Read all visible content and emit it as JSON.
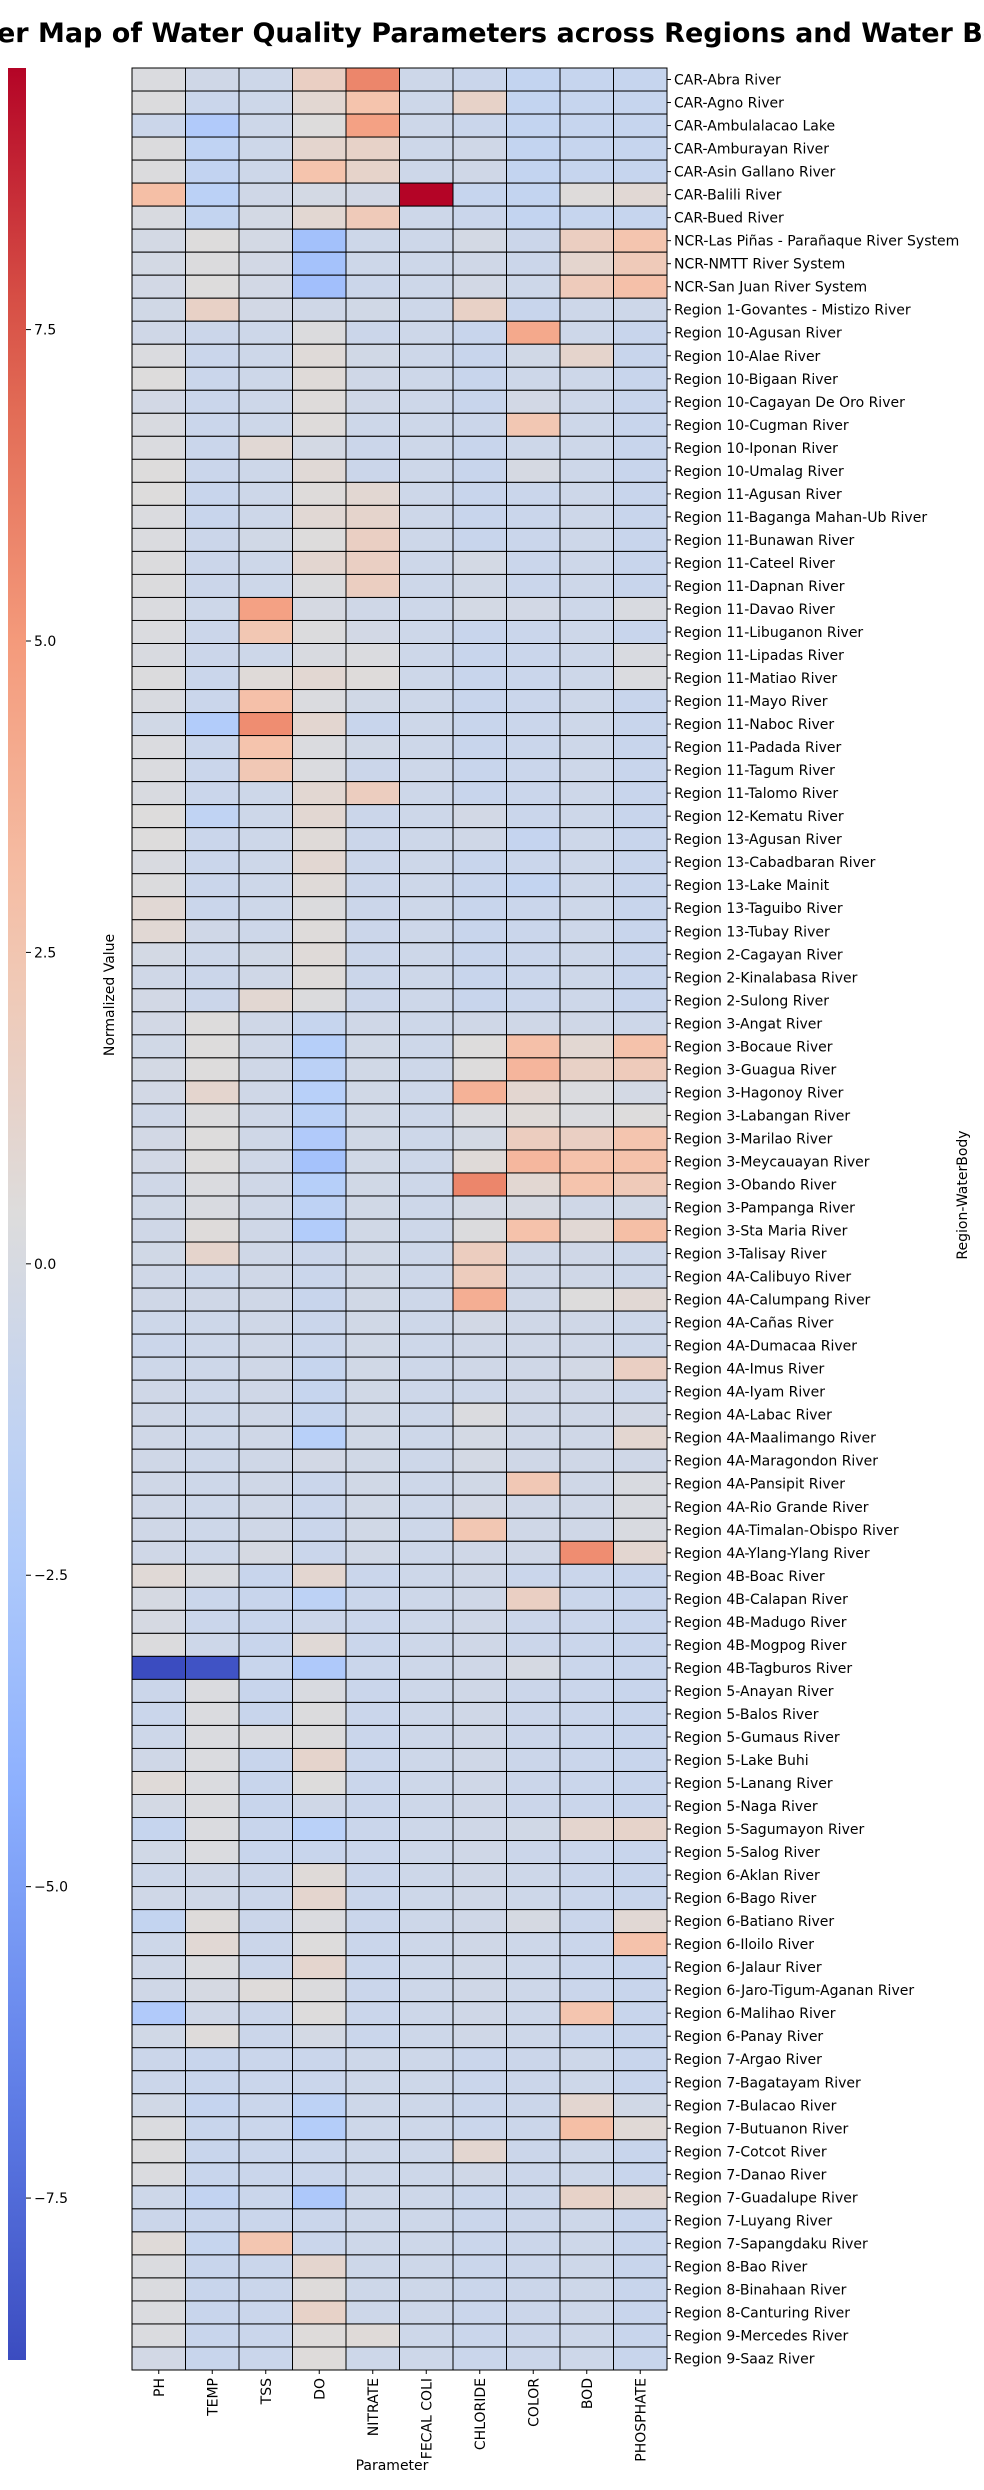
{
  "chart_data": {
    "type": "heatmap",
    "title": "Cluster Map of Water Quality Parameters across Regions and Water Bodies",
    "xlabel": "Parameter",
    "ylabel": "Region-WaterBody",
    "colorbar_label": "Normalized Value",
    "colormap": "coolwarm",
    "vmin": -8.8,
    "vmax": 9.6,
    "colorbar_ticks": [
      7.5,
      5.0,
      2.5,
      0.0,
      -2.5,
      -5.0,
      -7.5
    ],
    "colorbar_tick_labels": [
      "7.5",
      "5.0",
      "2.5",
      "0.0",
      "−2.5",
      "−5.0",
      "−7.5"
    ],
    "grid": true,
    "columns": [
      "PH",
      "TEMP",
      "TSS",
      "DO",
      "NITRATE",
      "FECAL COLI",
      "CHLORIDE",
      "COLOR",
      "BOD",
      "PHOSPHATE"
    ],
    "rows": [
      "CAR-Abra River",
      "CAR-Agno River",
      "CAR-Ambulalacao Lake",
      "CAR-Amburayan River",
      "CAR-Asin Gallano River",
      "CAR-Balili River",
      "CAR-Bued River",
      "NCR-Las Piñas - Parañaque River System",
      "NCR-NMTT River System",
      "NCR-San Juan River System",
      "Region 1-Govantes - Mistizo River",
      "Region 10-Agusan River",
      "Region 10-Alae River",
      "Region 10-Bigaan River",
      "Region 10-Cagayan De Oro River",
      "Region 10-Cugman River",
      "Region 10-Iponan River",
      "Region 10-Umalag River",
      "Region 11-Agusan River",
      "Region 11-Baganga Mahan-Ub River",
      "Region 11-Bunawan River",
      "Region 11-Cateel River",
      "Region 11-Dapnan River",
      "Region 11-Davao River",
      "Region 11-Libuganon River",
      "Region 11-Lipadas River",
      "Region 11-Matiao River",
      "Region 11-Mayo River",
      "Region 11-Naboc River",
      "Region 11-Padada River",
      "Region 11-Tagum River",
      "Region 11-Talomo River",
      "Region 12-Kematu River",
      "Region 13-Agusan River",
      "Region 13-Cabadbaran River",
      "Region 13-Lake Mainit",
      "Region 13-Taguibo River",
      "Region 13-Tubay River",
      "Region 2-Cagayan River",
      "Region 2-Kinalabasa River",
      "Region 2-Sulong River",
      "Region 3-Angat River",
      "Region 3-Bocaue River",
      "Region 3-Guagua River",
      "Region 3-Hagonoy River",
      "Region 3-Labangan River",
      "Region 3-Marilao River",
      "Region 3-Meycauayan River",
      "Region 3-Obando River",
      "Region 3-Pampanga River",
      "Region 3-Sta Maria River",
      "Region 3-Talisay River",
      "Region 4A-Calibuyo River",
      "Region 4A-Calumpang River",
      "Region 4A-Cañas River",
      "Region 4A-Dumacaa River",
      "Region 4A-Imus River",
      "Region 4A-Iyam River",
      "Region 4A-Labac River",
      "Region 4A-Maalimango River",
      "Region 4A-Maragondon River",
      "Region 4A-Pansipit River",
      "Region 4A-Rio Grande River",
      "Region 4A-Timalan-Obispo River",
      "Region 4A-Ylang-Ylang River",
      "Region 4B-Boac River",
      "Region 4B-Calapan River",
      "Region 4B-Madugo River",
      "Region 4B-Mogpog River",
      "Region 4B-Tagburos River",
      "Region 5-Anayan River",
      "Region 5-Balos River",
      "Region 5-Gumaus River",
      "Region 5-Lake Buhi",
      "Region 5-Lanang River",
      "Region 5-Naga River",
      "Region 5-Sagumayon River",
      "Region 5-Salog River",
      "Region 6-Aklan River",
      "Region 6-Bago River",
      "Region 6-Batiano River",
      "Region 6-Iloilo River",
      "Region 6-Jalaur River",
      "Region 6-Jaro-Tigum-Aganan River",
      "Region 6-Malihao River",
      "Region 6-Panay River",
      "Region 7-Argao River",
      "Region 7-Bagatayam River",
      "Region 7-Bulacao River",
      "Region 7-Butuanon River",
      "Region 7-Cotcot River",
      "Region 7-Danao River",
      "Region 7-Guadalupe River",
      "Region 7-Luyang River",
      "Region 7-Sapangdaku River",
      "Region 8-Bao River",
      "Region 8-Binahaan River",
      "Region 8-Canturing River",
      "Region 9-Mercedes River",
      "Region 9-Saaz River"
    ],
    "values": [
      [
        0.2,
        -0.5,
        -0.6,
        1.6,
        5.8,
        -0.6,
        -0.8,
        -1.2,
        -1.0,
        -1.0
      ],
      [
        0.3,
        -0.8,
        -0.6,
        0.9,
        2.7,
        -0.6,
        1.4,
        -1.2,
        -1.0,
        -1.0
      ],
      [
        -0.7,
        -2.3,
        -0.6,
        0.4,
        4.6,
        -0.6,
        -0.8,
        -1.2,
        -1.0,
        -1.0
      ],
      [
        0.3,
        -1.4,
        -0.6,
        1.1,
        1.4,
        -0.6,
        -0.5,
        -1.2,
        -1.0,
        -1.0
      ],
      [
        0.3,
        -1.3,
        -0.6,
        2.7,
        1.3,
        -0.6,
        -0.5,
        -1.2,
        -1.0,
        -1.0
      ],
      [
        3.0,
        -1.7,
        -0.5,
        -0.2,
        -0.3,
        9.6,
        -1.0,
        -1.2,
        0.5,
        0.8
      ],
      [
        0.1,
        -1.2,
        -0.2,
        0.9,
        2.1,
        -0.6,
        -0.8,
        -1.2,
        -1.0,
        -1.0
      ],
      [
        -0.2,
        0.4,
        -0.2,
        -3.0,
        -0.6,
        -0.6,
        -0.2,
        -0.7,
        1.7,
        2.6
      ],
      [
        -0.2,
        0.3,
        -0.3,
        -2.9,
        -0.6,
        -0.6,
        -0.5,
        -0.7,
        1.1,
        2.1
      ],
      [
        -0.3,
        0.4,
        -0.3,
        -3.1,
        -0.7,
        -0.6,
        -0.3,
        -0.6,
        2.0,
        2.9
      ],
      [
        -0.4,
        1.5,
        -0.3,
        -0.5,
        -0.4,
        -0.6,
        1.5,
        -0.9,
        -0.6,
        -0.6
      ],
      [
        -0.5,
        -0.7,
        -0.6,
        0.3,
        -0.7,
        -0.6,
        -0.9,
        4.2,
        -0.6,
        -0.9
      ],
      [
        0.2,
        -0.8,
        -0.6,
        0.6,
        -0.4,
        -0.6,
        -0.9,
        -0.4,
        1.2,
        -0.9
      ],
      [
        0.4,
        -0.8,
        -0.6,
        0.6,
        -0.5,
        -0.6,
        -0.9,
        -0.6,
        -0.6,
        -0.9
      ],
      [
        -0.3,
        -0.8,
        -0.6,
        0.5,
        -0.5,
        -0.6,
        -0.9,
        -0.3,
        -0.6,
        -0.9
      ],
      [
        0.1,
        -0.8,
        -0.6,
        0.5,
        -0.6,
        -0.6,
        -0.7,
        2.4,
        -0.6,
        -0.9
      ],
      [
        0.2,
        -0.8,
        0.8,
        -0.2,
        -0.7,
        -0.6,
        -0.9,
        -0.6,
        -0.6,
        -0.9
      ],
      [
        0.4,
        -0.8,
        -0.6,
        0.7,
        -0.7,
        -0.6,
        -0.9,
        -0.1,
        -0.6,
        -0.9
      ],
      [
        0.4,
        -0.9,
        -0.6,
        0.5,
        0.9,
        -0.6,
        -0.9,
        -0.8,
        -0.6,
        -0.9
      ],
      [
        0.2,
        -0.9,
        -0.6,
        0.8,
        1.2,
        -0.6,
        -0.9,
        -0.8,
        -0.6,
        -0.9
      ],
      [
        0.2,
        -0.7,
        -0.4,
        0.4,
        1.6,
        -0.6,
        -0.9,
        -0.8,
        -0.6,
        -0.9
      ],
      [
        0.3,
        -0.7,
        -0.6,
        1.0,
        1.6,
        -0.6,
        -0.2,
        -0.8,
        -0.6,
        -0.9
      ],
      [
        0.3,
        -0.7,
        -0.6,
        0.3,
        1.7,
        -0.6,
        -0.4,
        -0.8,
        -0.6,
        -0.9
      ],
      [
        0.2,
        -0.6,
        4.6,
        -0.1,
        -0.5,
        -0.6,
        -0.2,
        -0.3,
        -0.6,
        0.1
      ],
      [
        0.2,
        -0.7,
        2.4,
        0.3,
        -0.3,
        -0.6,
        -0.9,
        -0.8,
        -0.6,
        -0.9
      ],
      [
        0.1,
        -0.7,
        -0.6,
        0.1,
        0.2,
        -0.6,
        -0.9,
        -0.8,
        -0.6,
        0.1
      ],
      [
        0.3,
        -0.8,
        0.6,
        0.9,
        0.5,
        -0.6,
        -0.9,
        -0.8,
        -0.6,
        0.2
      ],
      [
        0.1,
        -0.8,
        2.9,
        0.2,
        -0.4,
        -0.6,
        -0.9,
        -0.8,
        -0.6,
        -0.9
      ],
      [
        -0.4,
        -2.2,
        5.5,
        1.0,
        -0.9,
        -0.6,
        -0.9,
        -0.8,
        -0.6,
        -0.9
      ],
      [
        0.2,
        -0.8,
        2.7,
        0.2,
        -0.4,
        -0.6,
        -0.9,
        -0.8,
        -0.6,
        -0.9
      ],
      [
        0.2,
        -0.8,
        2.3,
        0.2,
        -0.7,
        -0.6,
        -0.9,
        -0.8,
        -0.6,
        -0.9
      ],
      [
        0.1,
        -0.8,
        -0.6,
        0.9,
        1.8,
        -0.6,
        -0.9,
        -0.8,
        -0.6,
        -0.9
      ],
      [
        0.4,
        -1.4,
        -0.6,
        0.9,
        -0.7,
        -0.6,
        -0.3,
        -0.8,
        -0.6,
        -0.9
      ],
      [
        0.4,
        -0.8,
        -0.6,
        0.6,
        -0.7,
        -0.6,
        -0.5,
        -1.1,
        -0.6,
        -0.9
      ],
      [
        0.1,
        -0.8,
        -0.6,
        0.9,
        -0.7,
        -0.6,
        -0.9,
        -0.8,
        -0.6,
        -0.9
      ],
      [
        0.3,
        -0.8,
        -0.6,
        0.6,
        -0.7,
        -0.6,
        -0.9,
        -1.2,
        -0.6,
        -0.9
      ],
      [
        0.8,
        -0.8,
        -0.6,
        0.3,
        -0.7,
        -0.6,
        -0.9,
        -0.8,
        -0.6,
        -0.9
      ],
      [
        0.8,
        -0.5,
        -0.6,
        0.5,
        -0.7,
        -0.6,
        -0.9,
        -0.8,
        -0.6,
        -0.9
      ],
      [
        -0.2,
        -0.6,
        -0.4,
        0.6,
        -0.7,
        -0.6,
        -0.9,
        -0.8,
        -0.6,
        -0.9
      ],
      [
        -0.5,
        -0.7,
        -0.5,
        0.5,
        -0.7,
        -0.6,
        -0.9,
        -0.8,
        -0.6,
        -0.9
      ],
      [
        -0.3,
        -0.7,
        0.9,
        0.3,
        -0.7,
        -0.6,
        -0.9,
        -0.8,
        -0.6,
        -0.9
      ],
      [
        -0.3,
        0.4,
        -0.5,
        -1.0,
        -0.5,
        -0.6,
        -0.5,
        -0.5,
        -0.5,
        -0.6
      ],
      [
        -0.4,
        0.4,
        -0.5,
        -2.0,
        -0.4,
        -0.6,
        0.4,
        2.9,
        0.9,
        2.8
      ],
      [
        -0.2,
        0.4,
        -0.5,
        -1.7,
        -0.4,
        -0.6,
        0.4,
        3.5,
        1.5,
        2.0
      ],
      [
        -0.3,
        1.1,
        -0.5,
        -1.9,
        -0.4,
        -0.6,
        3.7,
        1.0,
        0.2,
        -0.2
      ],
      [
        -0.5,
        0.3,
        -0.5,
        -1.7,
        -0.4,
        -0.6,
        0.2,
        0.6,
        0.2,
        0.4
      ],
      [
        -0.3,
        0.4,
        -0.5,
        -2.3,
        -0.4,
        -0.6,
        -0.2,
        1.8,
        1.6,
        2.6
      ],
      [
        -0.3,
        0.4,
        -0.5,
        -2.9,
        -0.4,
        -0.6,
        0.6,
        3.4,
        2.8,
        2.8
      ],
      [
        -0.5,
        0.2,
        -0.5,
        -2.0,
        -0.4,
        -0.6,
        5.8,
        0.9,
        2.7,
        2.1
      ],
      [
        -0.4,
        0.1,
        -0.5,
        -1.5,
        -0.4,
        -0.6,
        -0.2,
        -0.1,
        -0.5,
        -0.4
      ],
      [
        -0.5,
        0.5,
        -0.5,
        -2.2,
        -0.4,
        -0.6,
        0.3,
        2.8,
        0.8,
        3.0
      ],
      [
        -0.4,
        1.2,
        -0.5,
        -0.7,
        -0.4,
        -0.6,
        1.8,
        -0.5,
        -0.5,
        -0.6
      ],
      [
        -0.5,
        -0.6,
        -0.5,
        -0.8,
        -0.4,
        -0.6,
        1.9,
        -0.5,
        -0.5,
        -0.6
      ],
      [
        -0.5,
        -0.5,
        -0.5,
        -0.9,
        -0.4,
        -0.6,
        3.9,
        -0.5,
        0.4,
        0.8
      ],
      [
        -0.6,
        -0.6,
        -0.5,
        -0.8,
        -0.4,
        -0.6,
        -0.3,
        -0.5,
        -0.5,
        -0.6
      ],
      [
        -0.7,
        -0.6,
        -0.5,
        -0.8,
        -0.4,
        -0.6,
        -0.5,
        -0.5,
        -0.5,
        -0.6
      ],
      [
        -0.6,
        -0.6,
        -0.5,
        -1.0,
        -0.4,
        -0.6,
        -0.5,
        -0.5,
        -0.3,
        1.6
      ],
      [
        -0.5,
        -0.6,
        -0.5,
        -1.0,
        -0.4,
        -0.6,
        -0.6,
        -0.5,
        -0.5,
        -0.6
      ],
      [
        -0.5,
        -0.6,
        -0.5,
        -1.0,
        -0.4,
        -0.6,
        0.2,
        -0.5,
        -0.5,
        -0.3
      ],
      [
        -0.5,
        -0.6,
        -0.5,
        -1.9,
        -0.4,
        -0.6,
        -0.2,
        -0.5,
        -0.5,
        1.0
      ],
      [
        -0.5,
        -0.6,
        -0.5,
        -0.3,
        -0.4,
        -0.6,
        -0.2,
        -0.5,
        -0.5,
        -0.5
      ],
      [
        -0.5,
        -0.6,
        -0.5,
        -0.8,
        -0.4,
        -0.6,
        -0.4,
        2.3,
        -0.5,
        0.1
      ],
      [
        -0.5,
        -0.6,
        -0.5,
        -0.8,
        -0.4,
        -0.6,
        -0.3,
        -0.5,
        -0.5,
        0.1
      ],
      [
        -0.5,
        -0.6,
        -0.5,
        -0.8,
        -0.4,
        -0.6,
        2.4,
        -0.5,
        -0.5,
        0.1
      ],
      [
        -0.5,
        -0.6,
        -0.1,
        -0.8,
        -0.4,
        -0.6,
        -0.5,
        -0.5,
        5.5,
        1.0
      ],
      [
        0.7,
        0.1,
        -0.9,
        1.0,
        -0.8,
        -0.6,
        -0.5,
        -0.8,
        -0.8,
        -0.9
      ],
      [
        -0.1,
        -0.8,
        -0.9,
        -1.6,
        -0.8,
        -0.6,
        -0.5,
        1.6,
        -0.8,
        -0.9
      ],
      [
        -0.1,
        -0.8,
        -0.9,
        -0.7,
        -0.8,
        -0.6,
        -0.5,
        -0.7,
        -0.8,
        -0.9
      ],
      [
        0.3,
        -0.6,
        -0.9,
        0.7,
        -0.8,
        -0.6,
        -0.5,
        -0.7,
        -0.8,
        -0.9
      ],
      [
        -8.8,
        -8.5,
        -0.9,
        -2.4,
        -0.8,
        -0.6,
        -0.5,
        -0.1,
        -0.8,
        -0.9
      ],
      [
        -0.7,
        0.2,
        -0.9,
        0.1,
        -0.8,
        -0.6,
        -0.5,
        -0.7,
        -0.8,
        -0.9
      ],
      [
        -0.8,
        0.2,
        -0.9,
        0.3,
        -0.8,
        -0.6,
        -0.5,
        -0.7,
        -0.8,
        -0.9
      ],
      [
        -0.6,
        0.2,
        0.2,
        0.3,
        -0.8,
        -0.6,
        -0.5,
        -0.7,
        -0.8,
        -0.9
      ],
      [
        -0.5,
        0.2,
        -0.9,
        1.2,
        -0.8,
        -0.6,
        -0.5,
        -0.7,
        -0.8,
        -0.9
      ],
      [
        0.6,
        0.2,
        -0.9,
        0.4,
        -0.8,
        -0.6,
        -0.5,
        -0.7,
        -0.8,
        -0.9
      ],
      [
        -0.2,
        0.2,
        -0.9,
        -0.5,
        -0.8,
        -0.6,
        -0.5,
        -0.7,
        -0.8,
        -0.9
      ],
      [
        -1.0,
        0.2,
        -0.9,
        -1.8,
        -0.8,
        -0.6,
        -0.5,
        -0.4,
        1.1,
        1.3
      ],
      [
        -0.4,
        0.2,
        -0.9,
        -0.9,
        -0.8,
        -0.6,
        -0.5,
        -0.7,
        -0.8,
        -0.9
      ],
      [
        -0.6,
        -0.5,
        -0.7,
        0.6,
        -0.8,
        -0.6,
        -0.5,
        -0.6,
        -0.8,
        -0.9
      ],
      [
        -0.5,
        -0.5,
        -0.7,
        1.1,
        -0.8,
        -0.6,
        -0.5,
        -0.6,
        -0.8,
        -0.9
      ],
      [
        -1.2,
        0.5,
        -0.7,
        0.2,
        -0.8,
        -0.6,
        -0.5,
        -0.1,
        -0.8,
        0.8
      ],
      [
        -0.6,
        0.8,
        -0.7,
        0.4,
        -0.8,
        -0.6,
        -0.5,
        -0.6,
        -0.8,
        2.8
      ],
      [
        -0.5,
        0.2,
        -0.7,
        1.1,
        -0.8,
        -0.6,
        -0.5,
        -0.6,
        -0.8,
        -0.9
      ],
      [
        -0.5,
        -0.1,
        0.5,
        0.3,
        -0.8,
        -0.6,
        -0.5,
        -0.6,
        -0.8,
        -0.9
      ],
      [
        -2.3,
        -0.5,
        -0.7,
        0.4,
        -0.8,
        -0.6,
        -0.5,
        -0.6,
        2.6,
        -0.9
      ],
      [
        -0.4,
        0.5,
        -0.7,
        -0.2,
        -0.8,
        -0.6,
        -0.5,
        -0.6,
        -0.8,
        -0.9
      ],
      [
        -0.7,
        -0.9,
        -0.8,
        -0.8,
        -0.6,
        -0.6,
        -0.8,
        -0.7,
        -0.6,
        -0.9
      ],
      [
        -0.7,
        -0.9,
        -0.8,
        -0.8,
        -0.6,
        -0.6,
        -0.8,
        -0.7,
        -0.6,
        -0.9
      ],
      [
        -0.4,
        -1.1,
        -0.8,
        -1.6,
        -0.6,
        -0.6,
        -0.8,
        -0.7,
        1.0,
        -0.4
      ],
      [
        0.2,
        -0.9,
        -0.8,
        -2.1,
        -0.6,
        -0.6,
        -0.8,
        -0.7,
        3.0,
        0.7
      ],
      [
        0.3,
        -0.9,
        -0.8,
        -0.8,
        -0.6,
        -0.6,
        1.0,
        -0.7,
        -0.6,
        -0.9
      ],
      [
        0.2,
        -0.9,
        -0.8,
        -0.8,
        -0.6,
        -0.6,
        -0.5,
        -0.7,
        -0.6,
        -0.9
      ],
      [
        -0.6,
        -1.3,
        -0.8,
        -2.5,
        -0.6,
        -0.6,
        -0.8,
        -0.7,
        1.4,
        1.0
      ],
      [
        -0.7,
        -0.9,
        -0.8,
        -0.8,
        -0.6,
        -0.6,
        -0.8,
        -0.7,
        -0.6,
        -0.9
      ],
      [
        0.6,
        -1.0,
        2.5,
        -0.8,
        -0.6,
        -0.6,
        -0.8,
        -0.7,
        -0.6,
        -0.9
      ],
      [
        0.2,
        -0.9,
        -0.8,
        1.1,
        -0.6,
        -0.6,
        -0.8,
        -0.7,
        -0.6,
        -0.9
      ],
      [
        0.2,
        -0.9,
        -0.8,
        0.5,
        -0.6,
        -0.6,
        -0.8,
        -0.7,
        -0.6,
        -0.9
      ],
      [
        0.2,
        -0.9,
        -0.8,
        1.4,
        -0.6,
        -0.6,
        -0.8,
        -0.7,
        -0.6,
        -0.9
      ],
      [
        0.2,
        -0.9,
        -0.8,
        0.5,
        0.6,
        -0.6,
        -0.8,
        -0.7,
        -0.6,
        -0.9
      ],
      [
        -0.3,
        -0.9,
        -0.8,
        0.5,
        -0.6,
        -0.6,
        -0.8,
        -0.7,
        -0.6,
        -0.9
      ]
    ]
  }
}
